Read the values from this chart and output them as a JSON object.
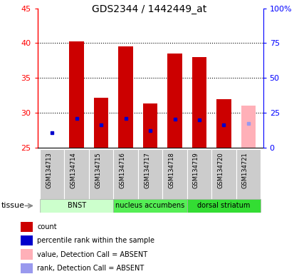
{
  "title": "GDS2344 / 1442449_at",
  "samples": [
    "GSM134713",
    "GSM134714",
    "GSM134715",
    "GSM134716",
    "GSM134717",
    "GSM134718",
    "GSM134719",
    "GSM134720",
    "GSM134721"
  ],
  "bar_tops": [
    null,
    40.3,
    32.2,
    39.5,
    31.4,
    38.5,
    38.0,
    32.0,
    31.1
  ],
  "bar_base": 25.0,
  "rank_values": [
    27.2,
    29.2,
    28.3,
    29.2,
    27.5,
    29.1,
    29.0,
    28.3,
    28.5
  ],
  "absent_flags": [
    true,
    false,
    false,
    false,
    false,
    false,
    false,
    false,
    true
  ],
  "ylim_left": [
    25,
    45
  ],
  "ylim_right": [
    0,
    100
  ],
  "yticks_left": [
    25,
    30,
    35,
    40,
    45
  ],
  "yticks_right": [
    0,
    25,
    50,
    75,
    100
  ],
  "ytick_labels_right": [
    "0",
    "25",
    "50",
    "75",
    "100%"
  ],
  "bar_color_present": "#cc0000",
  "bar_color_absent": "#ffb0b8",
  "rank_color_present": "#0000cc",
  "rank_color_absent": "#9999ee",
  "tissue_groups": [
    {
      "label": "BNST",
      "start": 0,
      "end": 3,
      "color": "#ccffcc"
    },
    {
      "label": "nucleus accumbens",
      "start": 3,
      "end": 6,
      "color": "#55ee55"
    },
    {
      "label": "dorsal striatum",
      "start": 6,
      "end": 9,
      "color": "#33dd33"
    }
  ],
  "tissue_label": "tissue",
  "legend_items": [
    {
      "label": "count",
      "color": "#cc0000"
    },
    {
      "label": "percentile rank within the sample",
      "color": "#0000cc"
    },
    {
      "label": "value, Detection Call = ABSENT",
      "color": "#ffb0b8"
    },
    {
      "label": "rank, Detection Call = ABSENT",
      "color": "#9999ee"
    }
  ]
}
